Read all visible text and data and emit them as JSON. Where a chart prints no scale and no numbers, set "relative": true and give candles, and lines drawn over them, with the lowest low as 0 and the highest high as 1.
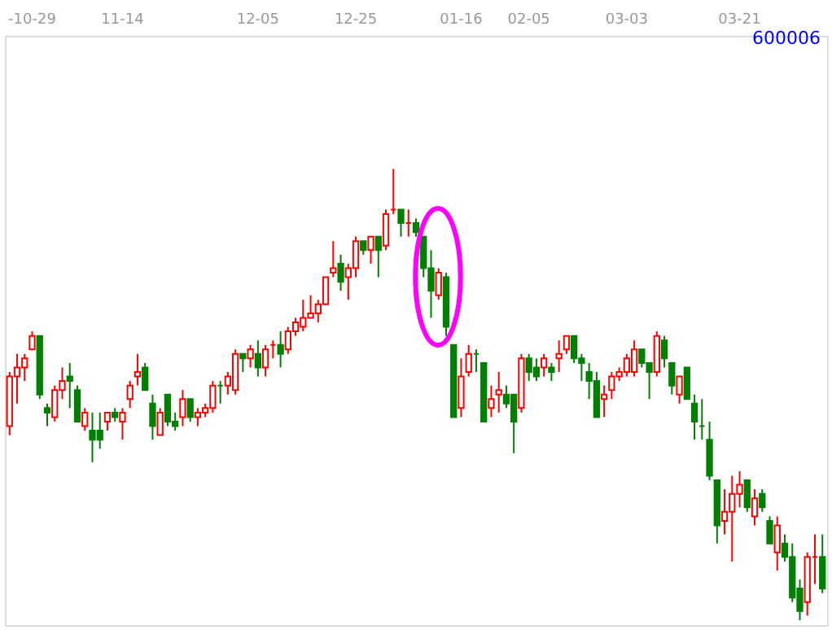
{
  "chart_data": {
    "type": "candlestick",
    "title": "600006",
    "relative": true,
    "categories": [
      null,
      null,
      null,
      "-10-29",
      null,
      null,
      null,
      null,
      null,
      null,
      null,
      null,
      null,
      null,
      null,
      "11-14",
      null,
      null,
      null,
      null,
      null,
      null,
      null,
      null,
      null,
      null,
      null,
      null,
      null,
      null,
      null,
      null,
      null,
      "12-05",
      null,
      null,
      null,
      null,
      null,
      null,
      null,
      null,
      null,
      null,
      null,
      null,
      "12-25",
      null,
      null,
      null,
      null,
      null,
      null,
      null,
      null,
      null,
      null,
      null,
      null,
      null,
      "01-16",
      null,
      null,
      null,
      null,
      null,
      null,
      null,
      null,
      "02-05",
      null,
      null,
      null,
      null,
      null,
      null,
      null,
      null,
      null,
      null,
      null,
      null,
      "03-03",
      null,
      null,
      null,
      null,
      null,
      null,
      null,
      null,
      null,
      null,
      null,
      null,
      null,
      null,
      "03-21",
      null,
      null,
      null,
      null,
      null,
      null,
      null,
      null,
      null,
      null,
      null
    ],
    "ohlc": [
      [
        0.43,
        0.55,
        0.41,
        0.54
      ],
      [
        0.54,
        0.59,
        0.48,
        0.56
      ],
      [
        0.56,
        0.59,
        0.53,
        0.58
      ],
      [
        0.6,
        0.64,
        0.6,
        0.63
      ],
      [
        0.63,
        0.63,
        0.49,
        0.5
      ],
      [
        0.47,
        0.48,
        0.43,
        0.46
      ],
      [
        0.45,
        0.52,
        0.44,
        0.51
      ],
      [
        0.51,
        0.56,
        0.49,
        0.53
      ],
      [
        0.54,
        0.57,
        0.47,
        0.53
      ],
      [
        0.51,
        0.52,
        0.44,
        0.44
      ],
      [
        0.43,
        0.47,
        0.42,
        0.46
      ],
      [
        0.42,
        0.46,
        0.35,
        0.4
      ],
      [
        0.42,
        0.46,
        0.38,
        0.4
      ],
      [
        0.44,
        0.46,
        0.42,
        0.46
      ],
      [
        0.46,
        0.47,
        0.44,
        0.45
      ],
      [
        0.44,
        0.47,
        0.4,
        0.46
      ],
      [
        0.49,
        0.53,
        0.47,
        0.52
      ],
      [
        0.54,
        0.59,
        0.52,
        0.55
      ],
      [
        0.56,
        0.57,
        0.51,
        0.51
      ],
      [
        0.48,
        0.5,
        0.4,
        0.43
      ],
      [
        0.41,
        0.47,
        0.41,
        0.46
      ],
      [
        0.5,
        0.5,
        0.43,
        0.44
      ],
      [
        0.44,
        0.46,
        0.42,
        0.43
      ],
      [
        0.45,
        0.51,
        0.43,
        0.49
      ],
      [
        0.49,
        0.49,
        0.44,
        0.45
      ],
      [
        0.45,
        0.47,
        0.43,
        0.46
      ],
      [
        0.46,
        0.48,
        0.45,
        0.47
      ],
      [
        0.47,
        0.53,
        0.46,
        0.52
      ],
      [
        0.52,
        0.53,
        0.48,
        0.52
      ],
      [
        0.52,
        0.55,
        0.5,
        0.54
      ],
      [
        0.51,
        0.6,
        0.5,
        0.59
      ],
      [
        0.59,
        0.59,
        0.55,
        0.58
      ],
      [
        0.58,
        0.61,
        0.56,
        0.6
      ],
      [
        0.59,
        0.62,
        0.54,
        0.56
      ],
      [
        0.56,
        0.61,
        0.54,
        0.6
      ],
      [
        0.61,
        0.62,
        0.58,
        0.61
      ],
      [
        0.61,
        0.64,
        0.56,
        0.59
      ],
      [
        0.6,
        0.65,
        0.59,
        0.64
      ],
      [
        0.64,
        0.67,
        0.63,
        0.66
      ],
      [
        0.65,
        0.71,
        0.64,
        0.67
      ],
      [
        0.67,
        0.72,
        0.67,
        0.68
      ],
      [
        0.68,
        0.71,
        0.66,
        0.7
      ],
      [
        0.7,
        0.76,
        0.7,
        0.76
      ],
      [
        0.77,
        0.84,
        0.76,
        0.78
      ],
      [
        0.79,
        0.81,
        0.73,
        0.75
      ],
      [
        0.76,
        0.79,
        0.71,
        0.78
      ],
      [
        0.78,
        0.85,
        0.76,
        0.84
      ],
      [
        0.84,
        0.84,
        0.81,
        0.82
      ],
      [
        0.82,
        0.85,
        0.79,
        0.85
      ],
      [
        0.85,
        0.85,
        0.76,
        0.82
      ],
      [
        0.83,
        0.91,
        0.82,
        0.9
      ],
      [
        0.91,
        1,
        0.9,
        0.91
      ],
      [
        0.91,
        0.91,
        0.85,
        0.88
      ],
      [
        0.88,
        0.91,
        0.85,
        0.88
      ],
      [
        0.88,
        0.89,
        0.85,
        0.86
      ],
      [
        0.85,
        0.85,
        0.76,
        0.78
      ],
      [
        0.78,
        0.82,
        0.67,
        0.73
      ],
      [
        0.72,
        0.78,
        0.71,
        0.77
      ],
      [
        0.76,
        0.77,
        0.63,
        0.65
      ],
      [
        0.61,
        0.61,
        0.45,
        0.45
      ],
      [
        0.47,
        0.58,
        0.45,
        0.54
      ],
      [
        0.55,
        0.61,
        0.54,
        0.59
      ],
      [
        0.59,
        0.6,
        0.55,
        0.59
      ],
      [
        0.57,
        0.57,
        0.44,
        0.44
      ],
      [
        0.47,
        0.52,
        0.45,
        0.49
      ],
      [
        0.5,
        0.55,
        0.46,
        0.51
      ],
      [
        0.5,
        0.52,
        0.47,
        0.48
      ],
      [
        0.5,
        0.5,
        0.37,
        0.44
      ],
      [
        0.47,
        0.59,
        0.46,
        0.58
      ],
      [
        0.58,
        0.59,
        0.53,
        0.55
      ],
      [
        0.56,
        0.58,
        0.53,
        0.54
      ],
      [
        0.56,
        0.59,
        0.54,
        0.58
      ],
      [
        0.56,
        0.57,
        0.53,
        0.55
      ],
      [
        0.58,
        0.62,
        0.55,
        0.59
      ],
      [
        0.6,
        0.63,
        0.59,
        0.63
      ],
      [
        0.63,
        0.63,
        0.57,
        0.58
      ],
      [
        0.58,
        0.59,
        0.53,
        0.57
      ],
      [
        0.55,
        0.57,
        0.49,
        0.53
      ],
      [
        0.53,
        0.55,
        0.45,
        0.45
      ],
      [
        0.49,
        0.52,
        0.45,
        0.5
      ],
      [
        0.51,
        0.55,
        0.49,
        0.54
      ],
      [
        0.54,
        0.56,
        0.53,
        0.55
      ],
      [
        0.55,
        0.59,
        0.54,
        0.58
      ],
      [
        0.55,
        0.62,
        0.54,
        0.6
      ],
      [
        0.6,
        0.6,
        0.56,
        0.57
      ],
      [
        0.57,
        0.57,
        0.49,
        0.55
      ],
      [
        0.55,
        0.64,
        0.54,
        0.63
      ],
      [
        0.62,
        0.63,
        0.56,
        0.58
      ],
      [
        0.57,
        0.57,
        0.5,
        0.52
      ],
      [
        0.5,
        0.54,
        0.48,
        0.54
      ],
      [
        0.56,
        0.56,
        0.49,
        0.49
      ],
      [
        0.48,
        0.5,
        0.4,
        0.44
      ],
      [
        0.43,
        0.49,
        0.4,
        0.43
      ],
      [
        0.4,
        0.44,
        0.31,
        0.32
      ],
      [
        0.31,
        0.31,
        0.17,
        0.21
      ],
      [
        0.22,
        0.29,
        0.19,
        0.24
      ],
      [
        0.24,
        0.32,
        0.13,
        0.28
      ],
      [
        0.28,
        0.33,
        0.25,
        0.3
      ],
      [
        0.31,
        0.31,
        0.24,
        0.25
      ],
      [
        0.23,
        0.29,
        0.21,
        0.27
      ],
      [
        0.28,
        0.29,
        0.24,
        0.25
      ],
      [
        0.22,
        0.23,
        0.17,
        0.17
      ],
      [
        0.15,
        0.23,
        0.11,
        0.21
      ],
      [
        0.17,
        0.19,
        0.13,
        0.14
      ],
      [
        0.14,
        0.17,
        0.04,
        0.05
      ],
      [
        0.07,
        0.09,
        0,
        0.02
      ],
      [
        0.04,
        0.15,
        0.01,
        0.14
      ],
      [
        0.14,
        0.19,
        0.08,
        0.14
      ],
      [
        0.14,
        0.19,
        0.06,
        0.07
      ]
    ],
    "colors": [
      "#ff0000",
      "#ff0000",
      "#ff0000",
      "#ff0000",
      "#008000",
      "#008000",
      "#ff0000",
      "#ff0000",
      "#008000",
      "#008000",
      "#ff0000",
      "#008000",
      "#008000",
      "#ff0000",
      "#008000",
      "#ff0000",
      "#ff0000",
      "#ff0000",
      "#008000",
      "#008000",
      "#ff0000",
      "#008000",
      "#008000",
      "#ff0000",
      "#008000",
      "#ff0000",
      "#ff0000",
      "#ff0000",
      "#008000",
      "#ff0000",
      "#ff0000",
      "#008000",
      "#ff0000",
      "#008000",
      "#ff0000",
      "#ff0000",
      "#008000",
      "#ff0000",
      "#ff0000",
      "#ff0000",
      "#ff0000",
      "#ff0000",
      "#ff0000",
      "#ff0000",
      "#008000",
      "#ff0000",
      "#ff0000",
      "#008000",
      "#ff0000",
      "#008000",
      "#ff0000",
      "#ff0000",
      "#008000",
      "#ff0000",
      "#008000",
      "#008000",
      "#008000",
      "#ff0000",
      "#008000",
      "#008000",
      "#ff0000",
      "#ff0000",
      "#008000",
      "#008000",
      "#ff0000",
      "#ff0000",
      "#008000",
      "#008000",
      "#ff0000",
      "#008000",
      "#008000",
      "#ff0000",
      "#008000",
      "#ff0000",
      "#ff0000",
      "#008000",
      "#008000",
      "#008000",
      "#008000",
      "#ff0000",
      "#ff0000",
      "#ff0000",
      "#ff0000",
      "#ff0000",
      "#008000",
      "#008000",
      "#ff0000",
      "#008000",
      "#008000",
      "#ff0000",
      "#008000",
      "#008000",
      "#008000",
      "#008000",
      "#008000",
      "#ff0000",
      "#ff0000",
      "#ff0000",
      "#008000",
      "#ff0000",
      "#008000",
      "#008000",
      "#ff0000",
      "#008000",
      "#008000",
      "#008000",
      "#ff0000",
      "#ff0000",
      "#008000"
    ]
  }
}
